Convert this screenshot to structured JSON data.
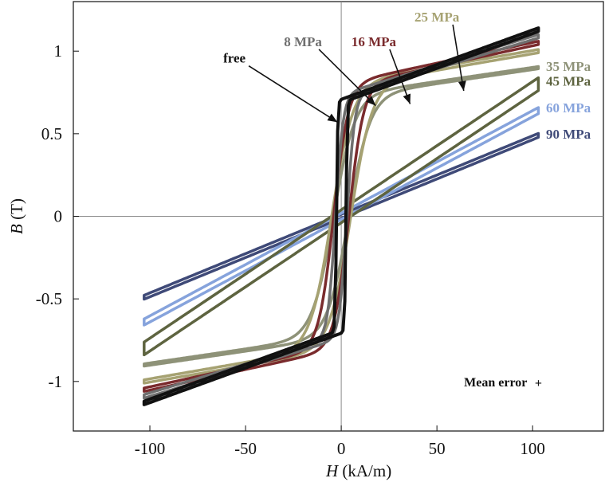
{
  "chart_data": {
    "type": "line",
    "title": "",
    "xlabel_italic": "H",
    "xlabel_unit": " (kA/m)",
    "ylabel_italic": "B",
    "ylabel_unit": " (T)",
    "xlim": [
      -140,
      137
    ],
    "ylim": [
      -1.3,
      1.3
    ],
    "x_ticks": [
      -100,
      -50,
      0,
      50,
      100
    ],
    "x_tick_labels": [
      "-100",
      "-50",
      "0",
      "50",
      "100"
    ],
    "y_ticks": [
      -1,
      -0.5,
      0,
      0.5,
      1
    ],
    "y_tick_labels": [
      "-1",
      "-0.5",
      "0",
      "0.5",
      "1"
    ],
    "grid": false,
    "zero_lines": true,
    "series": [
      {
        "name": "90 MPa",
        "color": "#3f4a78",
        "Hmax": 103,
        "Bsat": 0.49,
        "Hc": 2.5,
        "slope": 0.0046,
        "k": 0,
        "shape": "linear",
        "alpha": 0
      },
      {
        "name": "60 MPa",
        "color": "#86a3dc",
        "Hmax": 103,
        "Bsat": 0.64,
        "Hc": 3,
        "slope": 0.006,
        "k": 0,
        "shape": "linear",
        "alpha": 0
      },
      {
        "name": "45 MPa",
        "color": "#5e6440",
        "Hmax": 103,
        "Bsat": 0.8,
        "Hc": 5,
        "slope": 0.0075,
        "k": 0,
        "shape": "linear",
        "alpha": 0
      },
      {
        "name": "35 MPa",
        "color": "#8e9278",
        "Hmax": 103,
        "Bsat": 0.9,
        "Hc": 4,
        "slope": 0.0017,
        "k": 0,
        "shape": "tanh",
        "alpha": 0.09
      },
      {
        "name": "25 MPa",
        "color": "#a6a272",
        "Hmax": 103,
        "Bsat": 1.0,
        "Hc": 5,
        "slope": 0.002,
        "k": 0,
        "shape": "tanh",
        "alpha": 0.09
      },
      {
        "name": "16 MPa",
        "color": "#7a2b2d",
        "Hmax": 103,
        "Bsat": 1.05,
        "Hc": 4,
        "slope": 0.0025,
        "k": 0,
        "shape": "tanh",
        "alpha": 0.13
      },
      {
        "name": "8 MPa",
        "color": "#6f6f6f",
        "Hmax": 103,
        "Bsat": 1.09,
        "Hc": 3,
        "slope": 0.0035,
        "k": 0,
        "shape": "tanh",
        "alpha": 0.25
      },
      {
        "name": "free",
        "color": "#111111",
        "Hmax": 103,
        "Bsat": 1.13,
        "Hc": 2.5,
        "slope": 0.0042,
        "k": 0,
        "shape": "tanh",
        "alpha": 1.5
      }
    ],
    "labels": [
      {
        "text": "free",
        "color": "#111111",
        "x": -50,
        "y": 0.93,
        "anchor": "end",
        "arrow_to": [
          -2,
          0.57
        ]
      },
      {
        "text": "8 MPa",
        "color": "#6f6f6f",
        "x": -20,
        "y": 1.03,
        "anchor": "middle",
        "arrow_to": [
          18,
          0.67
        ]
      },
      {
        "text": "16 MPa",
        "color": "#7a2b2d",
        "x": 17,
        "y": 1.03,
        "anchor": "middle",
        "arrow_to": [
          36,
          0.68
        ]
      },
      {
        "text": "25 MPa",
        "color": "#a6a272",
        "x": 50,
        "y": 1.18,
        "anchor": "middle",
        "arrow_to": [
          64,
          0.76
        ]
      },
      {
        "text": "35 MPa",
        "color": "#8e9278",
        "x": 107,
        "y": 0.88,
        "anchor": "start"
      },
      {
        "text": "45 MPa",
        "color": "#5e6440",
        "x": 107,
        "y": 0.79,
        "anchor": "start"
      },
      {
        "text": "60 MPa",
        "color": "#86a3dc",
        "x": 107,
        "y": 0.63,
        "anchor": "start"
      },
      {
        "text": "90 MPa",
        "color": "#3f4a78",
        "x": 107,
        "y": 0.47,
        "anchor": "start"
      }
    ],
    "annotation": {
      "text": "Mean error",
      "marker": "+",
      "x": 103,
      "y": -1.0
    }
  }
}
